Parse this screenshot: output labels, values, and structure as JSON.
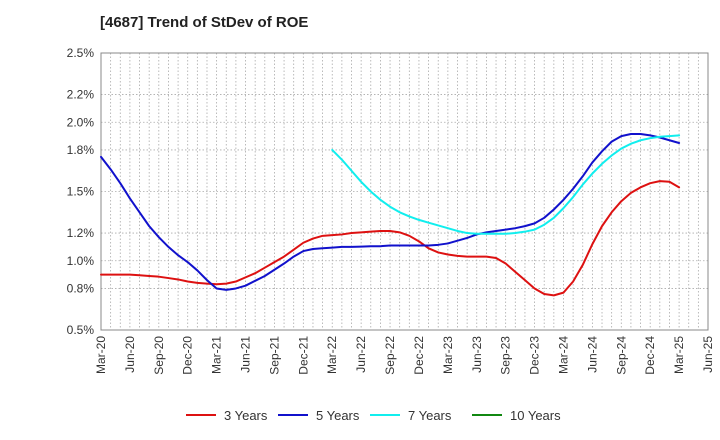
{
  "chart_data": {
    "type": "line",
    "title": "[4687]  Trend of StDev of ROE",
    "xlabel": "",
    "ylabel": "",
    "x_ticks": [
      "Mar-20",
      "Jun-20",
      "Sep-20",
      "Dec-20",
      "Mar-21",
      "Jun-21",
      "Sep-21",
      "Dec-21",
      "Mar-22",
      "Jun-22",
      "Sep-22",
      "Dec-22",
      "Mar-23",
      "Jun-23",
      "Sep-23",
      "Dec-23",
      "Mar-24",
      "Jun-24",
      "Sep-24",
      "Dec-24",
      "Mar-25",
      "Jun-25"
    ],
    "y_ticks": [
      "0.5%",
      "0.8%",
      "1.0%",
      "1.2%",
      "1.5%",
      "1.8%",
      "2.0%",
      "2.2%",
      "2.5%"
    ],
    "ylim": [
      0.5,
      2.5
    ],
    "grid": true,
    "legend_position": "bottom",
    "series": [
      {
        "name": "3 Years",
        "color": "#dd1111",
        "points": [
          [
            "Mar-20",
            0.9
          ],
          [
            "Apr-20",
            0.9
          ],
          [
            "May-20",
            0.9
          ],
          [
            "Jun-20",
            0.9
          ],
          [
            "Jul-20",
            0.895
          ],
          [
            "Aug-20",
            0.89
          ],
          [
            "Sep-20",
            0.885
          ],
          [
            "Oct-20",
            0.875
          ],
          [
            "Nov-20",
            0.865
          ],
          [
            "Dec-20",
            0.85
          ],
          [
            "Jan-21",
            0.84
          ],
          [
            "Feb-21",
            0.835
          ],
          [
            "Mar-21",
            0.83
          ],
          [
            "Apr-21",
            0.835
          ],
          [
            "May-21",
            0.85
          ],
          [
            "Jun-21",
            0.88
          ],
          [
            "Jul-21",
            0.91
          ],
          [
            "Aug-21",
            0.95
          ],
          [
            "Sep-21",
            0.99
          ],
          [
            "Oct-21",
            1.03
          ],
          [
            "Nov-21",
            1.08
          ],
          [
            "Dec-21",
            1.13
          ],
          [
            "Jan-22",
            1.16
          ],
          [
            "Feb-22",
            1.18
          ],
          [
            "Mar-22",
            1.185
          ],
          [
            "Apr-22",
            1.19
          ],
          [
            "May-22",
            1.2
          ],
          [
            "Jun-22",
            1.205
          ],
          [
            "Jul-22",
            1.21
          ],
          [
            "Aug-22",
            1.215
          ],
          [
            "Sep-22",
            1.215
          ],
          [
            "Oct-22",
            1.205
          ],
          [
            "Nov-22",
            1.18
          ],
          [
            "Dec-22",
            1.14
          ],
          [
            "Jan-23",
            1.09
          ],
          [
            "Feb-23",
            1.06
          ],
          [
            "Mar-23",
            1.045
          ],
          [
            "Apr-23",
            1.035
          ],
          [
            "May-23",
            1.03
          ],
          [
            "Jun-23",
            1.03
          ],
          [
            "Jul-23",
            1.03
          ],
          [
            "Aug-23",
            1.02
          ],
          [
            "Sep-23",
            0.98
          ],
          [
            "Oct-23",
            0.92
          ],
          [
            "Nov-23",
            0.86
          ],
          [
            "Dec-23",
            0.8
          ],
          [
            "Jan-24",
            0.76
          ],
          [
            "Feb-24",
            0.75
          ],
          [
            "Mar-24",
            0.77
          ],
          [
            "Apr-24",
            0.85
          ],
          [
            "May-24",
            0.97
          ],
          [
            "Jun-24",
            1.12
          ],
          [
            "Jul-24",
            1.25
          ],
          [
            "Aug-24",
            1.35
          ],
          [
            "Sep-24",
            1.43
          ],
          [
            "Oct-24",
            1.49
          ],
          [
            "Nov-24",
            1.53
          ],
          [
            "Dec-24",
            1.56
          ],
          [
            "Jan-25",
            1.575
          ],
          [
            "Feb-25",
            1.57
          ],
          [
            "Mar-25",
            1.53
          ]
        ]
      },
      {
        "name": "5 Years",
        "color": "#1111cc",
        "points": [
          [
            "Mar-20",
            1.75
          ],
          [
            "Apr-20",
            1.66
          ],
          [
            "May-20",
            1.56
          ],
          [
            "Jun-20",
            1.45
          ],
          [
            "Jul-20",
            1.35
          ],
          [
            "Aug-20",
            1.25
          ],
          [
            "Sep-20",
            1.17
          ],
          [
            "Oct-20",
            1.1
          ],
          [
            "Nov-20",
            1.04
          ],
          [
            "Dec-20",
            0.99
          ],
          [
            "Jan-21",
            0.93
          ],
          [
            "Feb-21",
            0.86
          ],
          [
            "Mar-21",
            0.8
          ],
          [
            "Apr-21",
            0.79
          ],
          [
            "May-21",
            0.8
          ],
          [
            "Jun-21",
            0.82
          ],
          [
            "Jul-21",
            0.855
          ],
          [
            "Aug-21",
            0.89
          ],
          [
            "Sep-21",
            0.935
          ],
          [
            "Oct-21",
            0.98
          ],
          [
            "Nov-21",
            1.03
          ],
          [
            "Dec-21",
            1.07
          ],
          [
            "Jan-22",
            1.085
          ],
          [
            "Feb-22",
            1.09
          ],
          [
            "Mar-22",
            1.095
          ],
          [
            "Apr-22",
            1.1
          ],
          [
            "May-22",
            1.1
          ],
          [
            "Jun-22",
            1.102
          ],
          [
            "Jul-22",
            1.105
          ],
          [
            "Aug-22",
            1.105
          ],
          [
            "Sep-22",
            1.11
          ],
          [
            "Oct-22",
            1.11
          ],
          [
            "Nov-22",
            1.11
          ],
          [
            "Dec-22",
            1.11
          ],
          [
            "Jan-23",
            1.11
          ],
          [
            "Feb-23",
            1.115
          ],
          [
            "Mar-23",
            1.125
          ],
          [
            "Apr-23",
            1.145
          ],
          [
            "May-23",
            1.165
          ],
          [
            "Jun-23",
            1.19
          ],
          [
            "Jul-23",
            1.205
          ],
          [
            "Aug-23",
            1.215
          ],
          [
            "Sep-23",
            1.225
          ],
          [
            "Oct-23",
            1.235
          ],
          [
            "Nov-23",
            1.25
          ],
          [
            "Dec-23",
            1.27
          ],
          [
            "Jan-24",
            1.31
          ],
          [
            "Feb-24",
            1.37
          ],
          [
            "Mar-24",
            1.44
          ],
          [
            "Apr-24",
            1.52
          ],
          [
            "May-24",
            1.61
          ],
          [
            "Jun-24",
            1.71
          ],
          [
            "Jul-24",
            1.79
          ],
          [
            "Aug-24",
            1.86
          ],
          [
            "Sep-24",
            1.9
          ],
          [
            "Oct-24",
            1.915
          ],
          [
            "Nov-24",
            1.915
          ],
          [
            "Dec-24",
            1.905
          ],
          [
            "Jan-25",
            1.89
          ],
          [
            "Feb-25",
            1.87
          ],
          [
            "Mar-25",
            1.85
          ]
        ]
      },
      {
        "name": "7 Years",
        "color": "#11eeee",
        "points": [
          [
            "Mar-22",
            1.8
          ],
          [
            "Apr-22",
            1.73
          ],
          [
            "May-22",
            1.65
          ],
          [
            "Jun-22",
            1.57
          ],
          [
            "Jul-22",
            1.5
          ],
          [
            "Aug-22",
            1.44
          ],
          [
            "Sep-22",
            1.39
          ],
          [
            "Oct-22",
            1.35
          ],
          [
            "Nov-22",
            1.32
          ],
          [
            "Dec-22",
            1.295
          ],
          [
            "Jan-23",
            1.275
          ],
          [
            "Feb-23",
            1.255
          ],
          [
            "Mar-23",
            1.235
          ],
          [
            "Apr-23",
            1.215
          ],
          [
            "May-23",
            1.2
          ],
          [
            "Jun-23",
            1.195
          ],
          [
            "Jul-23",
            1.195
          ],
          [
            "Aug-23",
            1.195
          ],
          [
            "Sep-23",
            1.195
          ],
          [
            "Oct-23",
            1.2
          ],
          [
            "Nov-23",
            1.21
          ],
          [
            "Dec-23",
            1.225
          ],
          [
            "Jan-24",
            1.26
          ],
          [
            "Feb-24",
            1.31
          ],
          [
            "Mar-24",
            1.38
          ],
          [
            "Apr-24",
            1.46
          ],
          [
            "May-24",
            1.55
          ],
          [
            "Jun-24",
            1.63
          ],
          [
            "Jul-24",
            1.7
          ],
          [
            "Aug-24",
            1.76
          ],
          [
            "Sep-24",
            1.81
          ],
          [
            "Oct-24",
            1.845
          ],
          [
            "Nov-24",
            1.87
          ],
          [
            "Dec-24",
            1.885
          ],
          [
            "Jan-25",
            1.895
          ],
          [
            "Feb-25",
            1.9
          ],
          [
            "Mar-25",
            1.905
          ]
        ]
      },
      {
        "name": "10 Years",
        "color": "#118811",
        "points": []
      }
    ]
  }
}
